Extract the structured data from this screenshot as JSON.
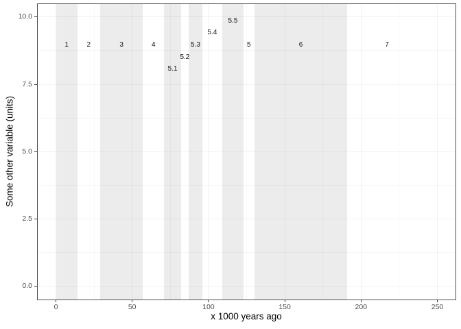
{
  "chart_data": {
    "type": "bar",
    "subtype": "vertical-interval-strips (stage/substage shading, no data series)",
    "title": "",
    "xlabel": "x 1000 years ago",
    "ylabel": "Some other variable (units)",
    "xlim": [
      -12.5,
      262.5
    ],
    "ylim": [
      -0.5,
      10.5
    ],
    "x_major_ticks": [
      0,
      50,
      100,
      150,
      200,
      250
    ],
    "x_minor_gridlines": [
      25,
      75,
      125,
      175,
      225
    ],
    "y_major_ticks": [
      "0.0",
      "2.5",
      "5.0",
      "7.5",
      "10.0"
    ],
    "y_major_tick_values": [
      0,
      2.5,
      5,
      7.5,
      10
    ],
    "y_minor_gridlines": [
      1.25,
      3.75,
      6.25,
      8.75
    ],
    "grid": "major and minor, light grey on white panel",
    "legend": "none",
    "stages": [
      {
        "label": "1",
        "start": 0,
        "end": 14,
        "shaded": true,
        "label_y": 8.95
      },
      {
        "label": "2",
        "start": 14,
        "end": 29,
        "shaded": false,
        "label_y": 8.95
      },
      {
        "label": "3",
        "start": 29,
        "end": 57,
        "shaded": true,
        "label_y": 8.95
      },
      {
        "label": "4",
        "start": 57,
        "end": 71,
        "shaded": false,
        "label_y": 8.95
      },
      {
        "label": "5.1",
        "start": 71,
        "end": 82,
        "shaded": true,
        "label_y": 8.05
      },
      {
        "label": "5.2",
        "start": 82,
        "end": 87,
        "shaded": false,
        "label_y": 8.5
      },
      {
        "label": "5.3",
        "start": 87,
        "end": 96,
        "shaded": true,
        "label_y": 8.95
      },
      {
        "label": "5.4",
        "start": 96,
        "end": 109,
        "shaded": false,
        "label_y": 9.4
      },
      {
        "label": "5.5",
        "start": 109,
        "end": 123,
        "shaded": true,
        "label_y": 9.85
      },
      {
        "label": "5",
        "start": 123,
        "end": 130,
        "shaded": false,
        "label_y": 8.95
      },
      {
        "label": "6",
        "start": 130,
        "end": 191,
        "shaded": true,
        "label_y": 8.95
      },
      {
        "label": "7",
        "start": 191,
        "end": 243,
        "shaded": false,
        "label_y": 8.95
      }
    ],
    "colors": {
      "band_fill": "#ececec",
      "grid_major": "rgba(0,0,0,0.05)",
      "grid_minor": "rgba(0,0,0,0.03)",
      "panel_border": "#4b4b4b",
      "tick_mark": "#333333",
      "tick_text": "#4d4d4d",
      "axis_title_text": "#000000",
      "stage_label_text": "#111111",
      "background": "#ffffff"
    }
  }
}
